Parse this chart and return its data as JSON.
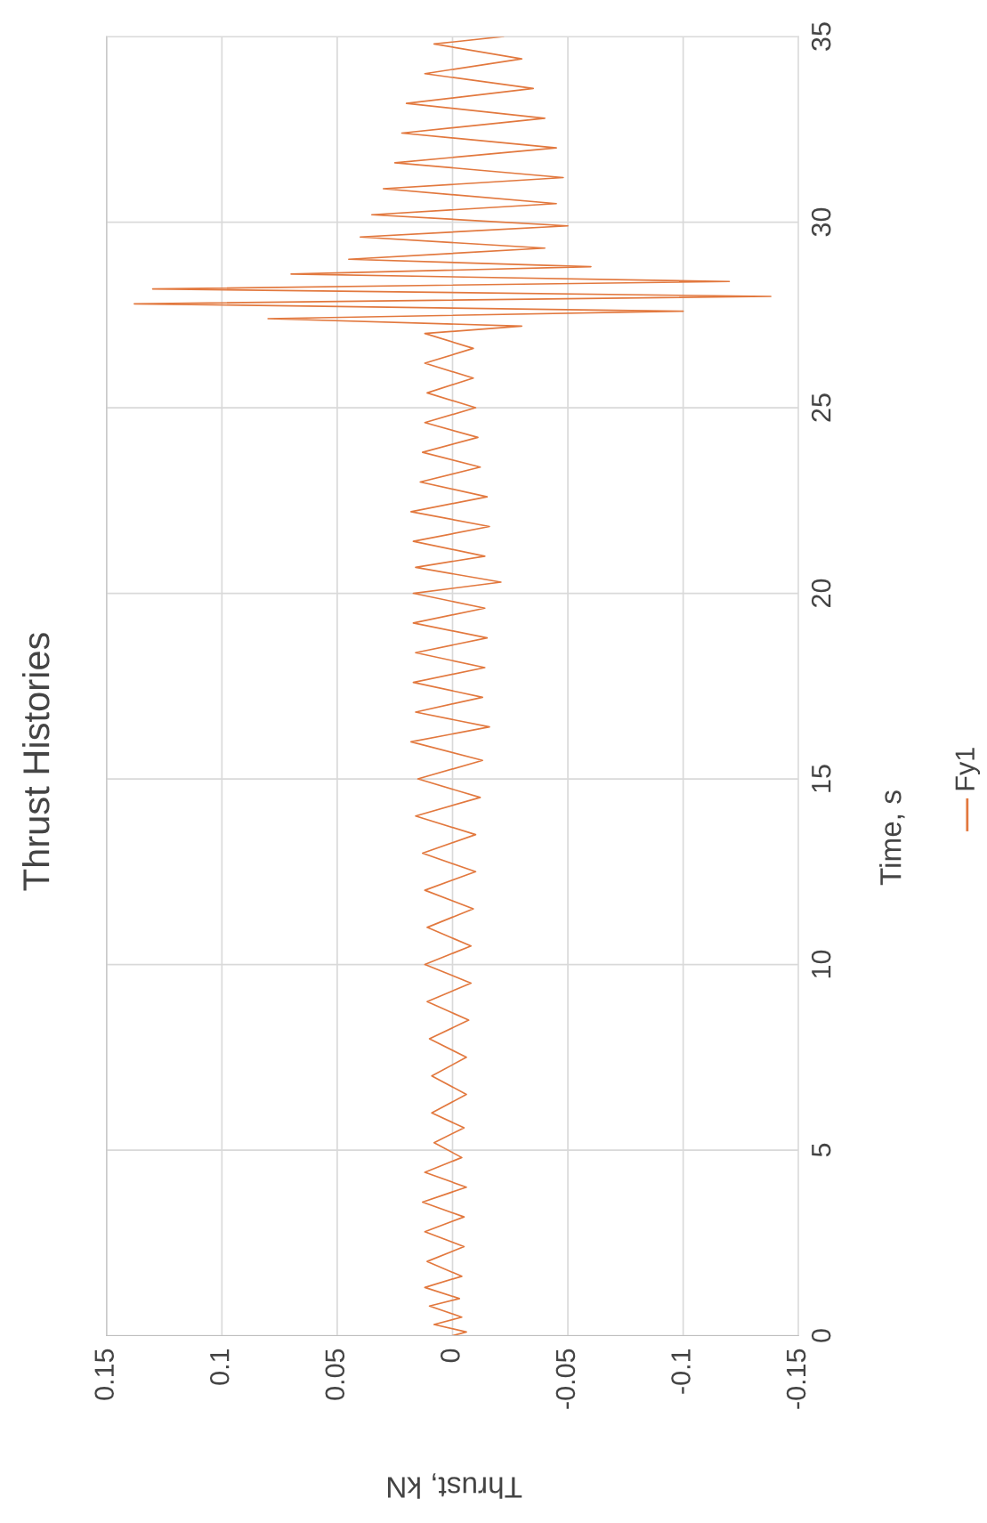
{
  "chart_data": {
    "type": "line",
    "title": "Thrust Histories",
    "xlabel": "Thrust, kN",
    "ylabel": "Time, s",
    "legend": "right",
    "grid": true,
    "xlim": [
      0.15,
      -0.15
    ],
    "xticks": [
      0.15,
      0.1,
      0.05,
      0,
      -0.05,
      -0.1,
      -0.15
    ],
    "ylim": [
      0,
      35
    ],
    "yticks": [
      0,
      5,
      10,
      15,
      20,
      25,
      30,
      35
    ],
    "series": [
      {
        "name": "Fy1",
        "color": "#e2783e",
        "values": [
          0,
          0.1,
          0.3,
          0.5,
          0.8,
          1.0,
          1.3,
          1.6,
          2.0,
          2.4,
          2.8,
          3.2,
          3.6,
          4.0,
          4.4,
          4.8,
          5.2,
          5.6,
          6.0,
          6.5,
          7.0,
          7.5,
          8.0,
          8.5,
          9.0,
          9.5,
          10.0,
          10.5,
          11.0,
          11.5,
          12.0,
          12.5,
          13.0,
          13.5,
          14.0,
          14.5,
          15.0,
          15.5,
          16.0,
          16.4,
          16.8,
          17.2,
          17.6,
          18.0,
          18.4,
          18.8,
          19.2,
          19.6,
          20.0,
          20.3,
          20.7,
          21.0,
          21.4,
          21.8,
          22.2,
          22.6,
          23.0,
          23.4,
          23.8,
          24.2,
          24.6,
          25.0,
          25.4,
          25.8,
          26.2,
          26.6,
          27.0,
          27.2,
          27.4,
          27.6,
          27.8,
          28.0,
          28.2,
          28.4,
          28.6,
          28.8,
          29.0,
          29.3,
          29.6,
          29.9,
          30.2,
          30.5,
          30.9,
          31.2,
          31.6,
          32.0,
          32.4,
          32.8,
          33.2,
          33.6,
          34.0,
          34.4,
          34.8,
          35.0
        ],
        "x": [
          0.0,
          -0.006,
          0.008,
          -0.004,
          0.01,
          -0.003,
          0.012,
          -0.004,
          0.011,
          -0.005,
          0.012,
          -0.005,
          0.013,
          -0.006,
          0.012,
          -0.004,
          0.008,
          -0.005,
          0.009,
          -0.006,
          0.009,
          -0.006,
          0.01,
          -0.007,
          0.011,
          -0.008,
          0.012,
          -0.008,
          0.011,
          -0.009,
          0.012,
          -0.01,
          0.013,
          -0.01,
          0.016,
          -0.012,
          0.015,
          -0.013,
          0.018,
          -0.016,
          0.016,
          -0.013,
          0.017,
          -0.014,
          0.016,
          -0.015,
          0.017,
          -0.014,
          0.017,
          -0.021,
          0.016,
          -0.014,
          0.017,
          -0.016,
          0.018,
          -0.015,
          0.014,
          -0.012,
          0.013,
          -0.011,
          0.012,
          -0.01,
          0.011,
          -0.009,
          0.012,
          -0.009,
          0.012,
          -0.03,
          0.08,
          -0.1,
          0.138,
          -0.138,
          0.13,
          -0.12,
          0.07,
          -0.06,
          0.045,
          -0.04,
          0.04,
          -0.05,
          0.035,
          -0.045,
          0.03,
          -0.048,
          0.025,
          -0.045,
          0.022,
          -0.04,
          0.02,
          -0.035,
          0.012,
          -0.03,
          0.008,
          -0.022
        ]
      }
    ]
  }
}
